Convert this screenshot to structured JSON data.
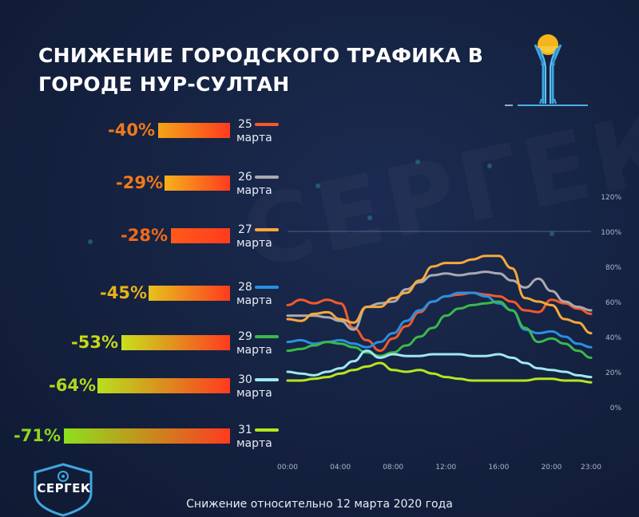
{
  "title": "СНИЖЕНИЕ ГОРОДСКОГО ТРАФИКА В ГОРОДЕ НУР-СУЛТАН",
  "watermark": "СЕРГЕК",
  "logo_text": "СЕРГЕК",
  "footnote": "Снижение относительно 12 марта 2020 года",
  "legend": [
    {
      "pct": "-40%",
      "day": "25",
      "word": "марта",
      "color": "#f25a2a",
      "pct_color": "#f07a1a",
      "bar_from": "#f3a417",
      "bar_to": "#ff3b1f"
    },
    {
      "pct": "-29%",
      "day": "26",
      "word": "марта",
      "color": "#a9aab0",
      "pct_color": "#f07a1a",
      "bar_from": "#f5b21a",
      "bar_to": "#ff3b1f"
    },
    {
      "pct": "-28%",
      "day": "27",
      "word": "марта",
      "color": "#f6a93b",
      "pct_color": "#f26a1a",
      "bar_from": "#ff5a1a",
      "bar_to": "#ff3b1f"
    },
    {
      "pct": "-45%",
      "day": "28",
      "word": "марта",
      "color": "#2a8fe0",
      "pct_color": "#e8b21a",
      "bar_from": "#e6c21c",
      "bar_to": "#ff3b1f"
    },
    {
      "pct": "-53%",
      "day": "29",
      "word": "марта",
      "color": "#3cb84a",
      "pct_color": "#c6d81a",
      "bar_from": "#c8e01e",
      "bar_to": "#ff3b1f"
    },
    {
      "pct": "-64%",
      "day": "30",
      "word": "марта",
      "color": "#9fe8f0",
      "pct_color": "#b2d81a",
      "bar_from": "#b8e01e",
      "bar_to": "#ff3b1f"
    },
    {
      "pct": "-71%",
      "day": "31",
      "word": "марта",
      "color": "#b6e61e",
      "pct_color": "#8ed81a",
      "bar_from": "#8ee01e",
      "bar_to": "#ff3b1f"
    }
  ],
  "chart_data": {
    "type": "line",
    "x": [
      "00:00",
      "01:00",
      "02:00",
      "03:00",
      "04:00",
      "05:00",
      "06:00",
      "07:00",
      "08:00",
      "09:00",
      "10:00",
      "11:00",
      "12:00",
      "13:00",
      "14:00",
      "15:00",
      "16:00",
      "17:00",
      "18:00",
      "19:00",
      "20:00",
      "21:00",
      "22:00",
      "23:00"
    ],
    "xticks": [
      "00:00",
      "04:00",
      "08:00",
      "12:00",
      "16:00",
      "20:00",
      "23:00"
    ],
    "yticks": [
      "0%",
      "20%",
      "40%",
      "60%",
      "80%",
      "100%",
      "120%"
    ],
    "ylim": [
      0,
      120
    ],
    "reference_line": 100,
    "series": [
      {
        "name": "25 марта",
        "color": "#f25a2a",
        "values": [
          58,
          61,
          59,
          61,
          59,
          45,
          38,
          32,
          39,
          46,
          54,
          60,
          63,
          64,
          65,
          64,
          63,
          60,
          55,
          54,
          61,
          59,
          56,
          53
        ]
      },
      {
        "name": "26 марта",
        "color": "#a9aab0",
        "values": [
          52,
          52,
          52,
          51,
          49,
          44,
          57,
          59,
          60,
          67,
          71,
          75,
          76,
          75,
          76,
          77,
          76,
          72,
          68,
          73,
          66,
          60,
          57,
          55
        ]
      },
      {
        "name": "27 марта",
        "color": "#f6a93b",
        "values": [
          50,
          49,
          53,
          54,
          50,
          48,
          57,
          57,
          62,
          65,
          72,
          80,
          82,
          82,
          84,
          86,
          86,
          79,
          62,
          60,
          58,
          50,
          48,
          42
        ]
      },
      {
        "name": "28 марта",
        "color": "#2a8fe0",
        "values": [
          37,
          38,
          36,
          37,
          38,
          36,
          34,
          37,
          42,
          49,
          55,
          60,
          63,
          65,
          65,
          63,
          59,
          55,
          44,
          42,
          43,
          40,
          36,
          34
        ]
      },
      {
        "name": "29 марта",
        "color": "#3cb84a",
        "values": [
          32,
          33,
          35,
          37,
          36,
          34,
          31,
          29,
          31,
          35,
          40,
          45,
          52,
          56,
          58,
          59,
          60,
          55,
          45,
          37,
          39,
          36,
          32,
          28
        ]
      },
      {
        "name": "30 марта",
        "color": "#9fe8f0",
        "values": [
          20,
          19,
          18,
          20,
          22,
          26,
          32,
          28,
          30,
          29,
          29,
          30,
          30,
          30,
          29,
          29,
          30,
          28,
          25,
          22,
          21,
          20,
          18,
          17
        ]
      },
      {
        "name": "31 марта",
        "color": "#b6e61e",
        "values": [
          15,
          15,
          16,
          17,
          19,
          21,
          23,
          25,
          21,
          20,
          21,
          19,
          17,
          16,
          15,
          15,
          15,
          15,
          15,
          16,
          16,
          15,
          15,
          14
        ]
      }
    ]
  },
  "colors": {
    "background": "#14213f",
    "title": "#ffffff",
    "grid": "#8a93ad"
  }
}
